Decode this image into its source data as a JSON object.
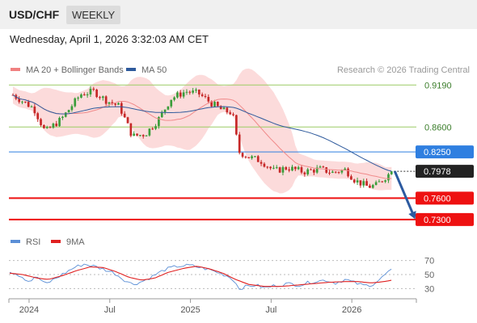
{
  "header": {
    "pair": "USD/CHF",
    "timeframe": "WEEKLY",
    "datetime": "Wednesday, April 1, 2026 3:32:03 AM CET"
  },
  "legend": {
    "items": [
      {
        "label": "MA 20 + Bollinger Bands",
        "color": "#f08080"
      },
      {
        "label": "MA 50",
        "color": "#2e5a9c"
      }
    ],
    "credit": "Research © 2026 Trading Central"
  },
  "rsi_legend": {
    "items": [
      {
        "label": "RSI",
        "color": "#5b8fd6"
      },
      {
        "label": "9MA",
        "color": "#e02020"
      }
    ]
  },
  "colors": {
    "up": "#3a9d3a",
    "down": "#c62828",
    "band_fill": "#fcd5d5",
    "ma20": "#f08a8a",
    "ma50": "#2e5a9c",
    "green_level": "#9ccc65",
    "blue_level": "#2f7fe0",
    "red_level": "#ee1111",
    "arrow": "#2c5aa0"
  },
  "chart_data": [
    {
      "type": "candlestick",
      "title": "",
      "x_tick_labels": [
        "2024",
        "Jul",
        "2025",
        "Jul",
        "2026"
      ],
      "x_tick_positions": [
        2024.0,
        2024.5,
        2025.0,
        2025.5,
        2026.0
      ],
      "x_range": [
        2023.88,
        2026.4
      ],
      "y_range": [
        0.7117,
        0.9363
      ],
      "levels": [
        {
          "value": 0.919,
          "label": "0.9190",
          "kind": "resistance"
        },
        {
          "value": 0.86,
          "label": "0.8600",
          "kind": "resistance"
        },
        {
          "value": 0.825,
          "label": "0.8250",
          "kind": "pivot"
        },
        {
          "value": 0.76,
          "label": "0.7600",
          "kind": "support"
        },
        {
          "value": 0.73,
          "label": "0.7300",
          "kind": "support"
        }
      ],
      "last_price": {
        "value": 0.7978,
        "label": "0.7978"
      },
      "forecast_arrow": {
        "from": 0.7978,
        "to": 0.73
      },
      "close_anchors": [
        [
          2023.9,
          0.905
        ],
        [
          2024.03,
          0.886
        ],
        [
          2024.1,
          0.853
        ],
        [
          2024.2,
          0.871
        ],
        [
          2024.32,
          0.906
        ],
        [
          2024.4,
          0.91
        ],
        [
          2024.48,
          0.897
        ],
        [
          2024.56,
          0.889
        ],
        [
          2024.64,
          0.847
        ],
        [
          2024.72,
          0.85
        ],
        [
          2024.8,
          0.87
        ],
        [
          2024.88,
          0.9
        ],
        [
          2024.97,
          0.91
        ],
        [
          2025.05,
          0.907
        ],
        [
          2025.12,
          0.895
        ],
        [
          2025.2,
          0.883
        ],
        [
          2025.26,
          0.88
        ],
        [
          2025.3,
          0.825
        ],
        [
          2025.36,
          0.818
        ],
        [
          2025.44,
          0.812
        ],
        [
          2025.52,
          0.798
        ],
        [
          2025.6,
          0.803
        ],
        [
          2025.7,
          0.797
        ],
        [
          2025.8,
          0.801
        ],
        [
          2025.88,
          0.796
        ],
        [
          2025.96,
          0.8
        ],
        [
          2026.02,
          0.785
        ],
        [
          2026.1,
          0.776
        ],
        [
          2026.15,
          0.778
        ],
        [
          2026.2,
          0.788
        ],
        [
          2026.25,
          0.7978
        ]
      ]
    },
    {
      "type": "line",
      "title": "",
      "y_ticks": [
        30,
        50,
        70
      ],
      "y_range": [
        20,
        80
      ],
      "series": [
        {
          "name": "RSI",
          "anchors": [
            [
              2023.88,
              55
            ],
            [
              2023.95,
              48
            ],
            [
              2024.0,
              40
            ],
            [
              2024.05,
              47
            ],
            [
              2024.1,
              36
            ],
            [
              2024.16,
              44
            ],
            [
              2024.22,
              52
            ],
            [
              2024.28,
              60
            ],
            [
              2024.34,
              65
            ],
            [
              2024.4,
              62
            ],
            [
              2024.47,
              57
            ],
            [
              2024.53,
              52
            ],
            [
              2024.58,
              44
            ],
            [
              2024.64,
              36
            ],
            [
              2024.7,
              40
            ],
            [
              2024.77,
              48
            ],
            [
              2024.84,
              57
            ],
            [
              2024.92,
              62
            ],
            [
              2025.0,
              63
            ],
            [
              2025.06,
              60
            ],
            [
              2025.12,
              57
            ],
            [
              2025.18,
              52
            ],
            [
              2025.23,
              48
            ],
            [
              2025.27,
              42
            ],
            [
              2025.3,
              30
            ],
            [
              2025.35,
              33
            ],
            [
              2025.4,
              35
            ],
            [
              2025.46,
              31
            ],
            [
              2025.52,
              34
            ],
            [
              2025.6,
              37
            ],
            [
              2025.68,
              35
            ],
            [
              2025.76,
              40
            ],
            [
              2025.84,
              42
            ],
            [
              2025.9,
              38
            ],
            [
              2025.96,
              43
            ],
            [
              2026.02,
              38
            ],
            [
              2026.08,
              34
            ],
            [
              2026.13,
              36
            ],
            [
              2026.18,
              44
            ],
            [
              2026.22,
              53
            ],
            [
              2026.25,
              56
            ]
          ]
        },
        {
          "name": "9MA",
          "anchors": [
            [
              2023.88,
              52
            ],
            [
              2023.96,
              50
            ],
            [
              2024.05,
              45
            ],
            [
              2024.12,
              43
            ],
            [
              2024.2,
              48
            ],
            [
              2024.3,
              56
            ],
            [
              2024.38,
              61
            ],
            [
              2024.46,
              60
            ],
            [
              2024.54,
              54
            ],
            [
              2024.62,
              46
            ],
            [
              2024.7,
              42
            ],
            [
              2024.78,
              45
            ],
            [
              2024.86,
              53
            ],
            [
              2024.96,
              59
            ],
            [
              2025.04,
              62
            ],
            [
              2025.12,
              58
            ],
            [
              2025.2,
              52
            ],
            [
              2025.28,
              43
            ],
            [
              2025.36,
              36
            ],
            [
              2025.46,
              33
            ],
            [
              2025.56,
              33
            ],
            [
              2025.66,
              35
            ],
            [
              2025.76,
              37
            ],
            [
              2025.86,
              39
            ],
            [
              2025.96,
              40
            ],
            [
              2026.04,
              40
            ],
            [
              2026.12,
              38
            ],
            [
              2026.2,
              40
            ],
            [
              2026.25,
              42
            ]
          ]
        }
      ]
    }
  ]
}
